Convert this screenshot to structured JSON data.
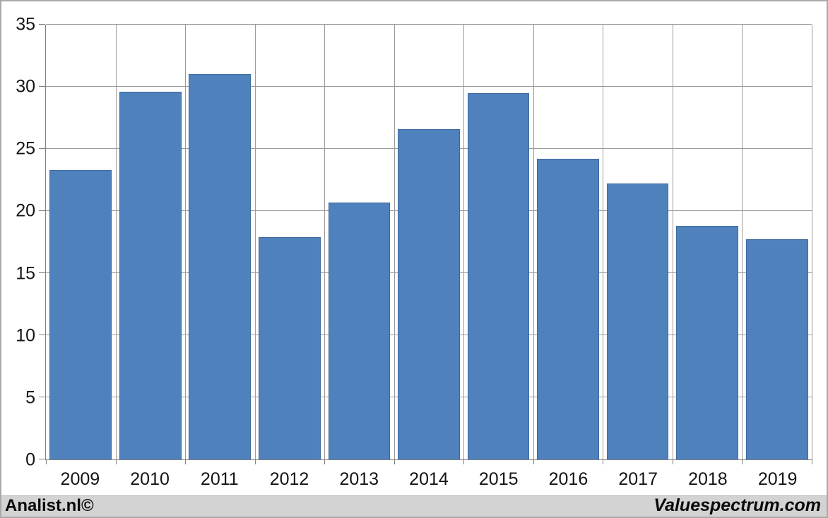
{
  "chart_data": {
    "type": "bar",
    "title": "",
    "categories": [
      "2009",
      "2010",
      "2011",
      "2012",
      "2013",
      "2014",
      "2015",
      "2016",
      "2017",
      "2018",
      "2019"
    ],
    "values": [
      23.3,
      29.6,
      31.0,
      17.9,
      20.7,
      26.6,
      29.5,
      24.2,
      22.2,
      18.8,
      17.7
    ],
    "ylim": [
      0,
      35
    ],
    "ytick_step": 5,
    "ytick_labels": [
      "0",
      "5",
      "10",
      "15",
      "20",
      "25",
      "30",
      "35"
    ],
    "grid": "horizontal-and-vertical",
    "legend_position": "none",
    "bar_color": "#4f81bd",
    "bar_border_color": "#3e699e",
    "gridline_color": "#9b9b9b",
    "axis_color": "#7f7f7f",
    "plot_background": "#ffffff"
  },
  "footer": {
    "left_label": "Analist.nl©",
    "right_label": "Valuespectrum.com",
    "background": "#d3d3d3"
  }
}
